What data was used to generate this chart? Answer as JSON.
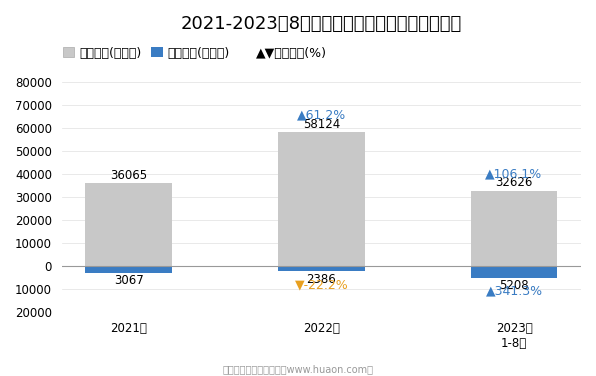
{
  "title": "2021-2023年8月青岛即墨综合保税区进、出口额",
  "categories": [
    "2021年",
    "2022年",
    "2023年\n1-8月"
  ],
  "export_values": [
    36065,
    58124,
    32626
  ],
  "import_values": [
    -3067,
    -2386,
    -5208
  ],
  "export_labels": [
    "36065",
    "58124",
    "32626"
  ],
  "import_labels": [
    "3067",
    "2386",
    "5208"
  ],
  "export_growth": [
    null,
    "▲61.2%",
    "▲106.1%"
  ],
  "import_growth": [
    null,
    "▼-22.2%",
    "▲341.3%"
  ],
  "export_growth_colors": [
    "#3A7CC3",
    "#3A7CC3"
  ],
  "import_growth_colors": [
    "#E8A020",
    "#3A7CC3"
  ],
  "ylim": [
    -20000,
    80000
  ],
  "yticks": [
    -20000,
    -10000,
    0,
    10000,
    20000,
    30000,
    40000,
    50000,
    60000,
    70000,
    80000
  ],
  "export_color": "#C8C8C8",
  "import_color": "#3A7CC3",
  "bar_width": 0.45,
  "background_color": "#FFFFFF",
  "title_fontsize": 13,
  "legend_fontsize": 9,
  "tick_fontsize": 8.5,
  "label_fontsize": 8.5,
  "annotation_fontsize": 9
}
